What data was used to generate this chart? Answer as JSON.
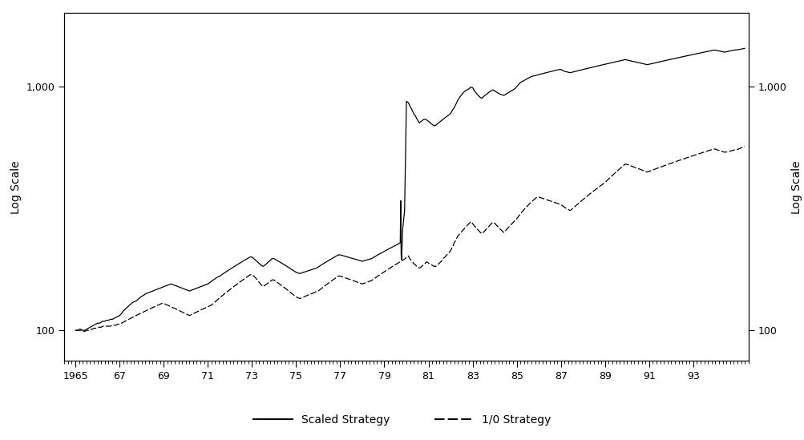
{
  "title": "",
  "xlabel": "",
  "ylabel_left": "Log Scale",
  "ylabel_right": "Log Scale",
  "xlim": [
    1964.5,
    1995.5
  ],
  "ylim": [
    75,
    2000
  ],
  "xtick_labels": [
    "1965",
    "67",
    "69",
    "71",
    "73",
    "75",
    "77",
    "79",
    "81",
    "83",
    "85",
    "87",
    "89",
    "91",
    "93"
  ],
  "xtick_positions": [
    1965,
    1967,
    1969,
    1971,
    1973,
    1975,
    1977,
    1979,
    1981,
    1983,
    1985,
    1987,
    1989,
    1991,
    1993
  ],
  "ytick_positions": [
    100,
    1000
  ],
  "ytick_labels": [
    "100",
    "1,000"
  ],
  "legend_entries": [
    "Scaled Strategy",
    "1/0 Strategy"
  ],
  "line_solid_color": "#000000",
  "line_dashed_color": "#000000",
  "background_color": "#ffffff",
  "scaled_years": [
    1965.0,
    1965.083,
    1965.167,
    1965.25,
    1965.333,
    1965.417,
    1965.5,
    1965.583,
    1965.667,
    1965.75,
    1965.833,
    1965.917,
    1966.0,
    1966.083,
    1966.167,
    1966.25,
    1966.333,
    1966.417,
    1966.5,
    1966.583,
    1966.667,
    1966.75,
    1966.833,
    1966.917,
    1967.0,
    1967.083,
    1967.167,
    1967.25,
    1967.333,
    1967.417,
    1967.5,
    1967.583,
    1967.667,
    1967.75,
    1967.833,
    1967.917,
    1968.0,
    1968.083,
    1968.167,
    1968.25,
    1968.333,
    1968.417,
    1968.5,
    1968.583,
    1968.667,
    1968.75,
    1968.833,
    1968.917,
    1969.0,
    1969.083,
    1969.167,
    1969.25,
    1969.333,
    1969.417,
    1969.5,
    1969.583,
    1969.667,
    1969.75,
    1969.833,
    1969.917,
    1970.0,
    1970.083,
    1970.167,
    1970.25,
    1970.333,
    1970.417,
    1970.5,
    1970.583,
    1970.667,
    1970.75,
    1970.833,
    1970.917,
    1971.0,
    1971.083,
    1971.167,
    1971.25,
    1971.333,
    1971.417,
    1971.5,
    1971.583,
    1971.667,
    1971.75,
    1971.833,
    1971.917,
    1972.0,
    1972.083,
    1972.167,
    1972.25,
    1972.333,
    1972.417,
    1972.5,
    1972.583,
    1972.667,
    1972.75,
    1972.833,
    1972.917,
    1973.0,
    1973.083,
    1973.167,
    1973.25,
    1973.333,
    1973.417,
    1973.5,
    1973.583,
    1973.667,
    1973.75,
    1973.833,
    1973.917,
    1974.0,
    1974.083,
    1974.167,
    1974.25,
    1974.333,
    1974.417,
    1974.5,
    1974.583,
    1974.667,
    1974.75,
    1974.833,
    1974.917,
    1975.0,
    1975.083,
    1975.167,
    1975.25,
    1975.333,
    1975.417,
    1975.5,
    1975.583,
    1975.667,
    1975.75,
    1975.833,
    1975.917,
    1976.0,
    1976.083,
    1976.167,
    1976.25,
    1976.333,
    1976.417,
    1976.5,
    1976.583,
    1976.667,
    1976.75,
    1976.833,
    1976.917,
    1977.0,
    1977.083,
    1977.167,
    1977.25,
    1977.333,
    1977.417,
    1977.5,
    1977.583,
    1977.667,
    1977.75,
    1977.833,
    1977.917,
    1978.0,
    1978.083,
    1978.167,
    1978.25,
    1978.333,
    1978.417,
    1978.5,
    1978.583,
    1978.667,
    1978.75,
    1978.833,
    1978.917,
    1979.0,
    1979.083,
    1979.167,
    1979.25,
    1979.333,
    1979.417,
    1979.5,
    1979.583,
    1979.667,
    1979.72,
    1979.74,
    1979.76,
    1979.78,
    1979.83,
    1979.917,
    1980.0,
    1980.083,
    1980.167,
    1980.25,
    1980.333,
    1980.417,
    1980.5,
    1980.583,
    1980.667,
    1980.75,
    1980.833,
    1980.917,
    1981.0,
    1981.083,
    1981.167,
    1981.25,
    1981.333,
    1981.417,
    1981.5,
    1981.583,
    1981.667,
    1981.75,
    1981.833,
    1981.917,
    1982.0,
    1982.083,
    1982.167,
    1982.25,
    1982.333,
    1982.417,
    1982.5,
    1982.583,
    1982.667,
    1982.75,
    1982.833,
    1982.917,
    1983.0,
    1983.083,
    1983.167,
    1983.25,
    1983.333,
    1983.417,
    1983.5,
    1983.583,
    1983.667,
    1983.75,
    1983.833,
    1983.917,
    1984.0,
    1984.083,
    1984.167,
    1984.25,
    1984.333,
    1984.417,
    1984.5,
    1984.583,
    1984.667,
    1984.75,
    1984.833,
    1984.917,
    1985.0,
    1985.083,
    1985.167,
    1985.25,
    1985.333,
    1985.417,
    1985.5,
    1985.583,
    1985.667,
    1985.75,
    1985.833,
    1985.917,
    1986.0,
    1986.083,
    1986.167,
    1986.25,
    1986.333,
    1986.417,
    1986.5,
    1986.583,
    1986.667,
    1986.75,
    1986.833,
    1986.917,
    1987.0,
    1987.083,
    1987.167,
    1987.25,
    1987.333,
    1987.417,
    1987.5,
    1987.583,
    1987.667,
    1987.75,
    1987.833,
    1987.917,
    1988.0,
    1988.083,
    1988.167,
    1988.25,
    1988.333,
    1988.417,
    1988.5,
    1988.583,
    1988.667,
    1988.75,
    1988.833,
    1988.917,
    1989.0,
    1989.083,
    1989.167,
    1989.25,
    1989.333,
    1989.417,
    1989.5,
    1989.583,
    1989.667,
    1989.75,
    1989.833,
    1989.917,
    1990.0,
    1990.083,
    1990.167,
    1990.25,
    1990.333,
    1990.417,
    1990.5,
    1990.583,
    1990.667,
    1990.75,
    1990.833,
    1990.917,
    1991.0,
    1991.083,
    1991.167,
    1991.25,
    1991.333,
    1991.417,
    1991.5,
    1991.583,
    1991.667,
    1991.75,
    1991.833,
    1991.917,
    1992.0,
    1992.083,
    1992.167,
    1992.25,
    1992.333,
    1992.417,
    1992.5,
    1992.583,
    1992.667,
    1992.75,
    1992.833,
    1992.917,
    1993.0,
    1993.083,
    1993.167,
    1993.25,
    1993.333,
    1993.417,
    1993.5,
    1993.583,
    1993.667,
    1993.75,
    1993.833,
    1993.917,
    1994.0,
    1994.083,
    1994.167,
    1994.25,
    1994.333,
    1994.417,
    1994.5,
    1994.583,
    1994.667,
    1994.75,
    1994.833,
    1994.917,
    1995.0,
    1995.083,
    1995.167,
    1995.25,
    1995.333
  ],
  "scaled_values": [
    100,
    100,
    101,
    101,
    100,
    100,
    101,
    102,
    103,
    104,
    105,
    106,
    107,
    107,
    108,
    109,
    109,
    110,
    110,
    111,
    111,
    112,
    113,
    114,
    115,
    117,
    120,
    122,
    124,
    126,
    128,
    130,
    131,
    132,
    134,
    136,
    138,
    139,
    141,
    142,
    143,
    144,
    145,
    146,
    147,
    148,
    149,
    150,
    151,
    152,
    153,
    154,
    155,
    154,
    153,
    152,
    151,
    150,
    149,
    148,
    147,
    146,
    145,
    146,
    147,
    148,
    149,
    150,
    151,
    152,
    153,
    154,
    155,
    157,
    159,
    161,
    163,
    165,
    166,
    168,
    170,
    172,
    174,
    176,
    178,
    180,
    182,
    184,
    186,
    188,
    190,
    192,
    194,
    196,
    198,
    200,
    200,
    197,
    194,
    191,
    188,
    185,
    183,
    185,
    188,
    191,
    194,
    197,
    197,
    195,
    193,
    191,
    189,
    187,
    185,
    183,
    181,
    179,
    177,
    175,
    173,
    172,
    171,
    172,
    173,
    174,
    175,
    176,
    177,
    178,
    179,
    180,
    182,
    184,
    186,
    188,
    190,
    192,
    194,
    196,
    198,
    200,
    202,
    204,
    204,
    203,
    202,
    201,
    200,
    199,
    198,
    197,
    196,
    195,
    194,
    193,
    192,
    193,
    194,
    195,
    196,
    197,
    199,
    201,
    203,
    205,
    207,
    209,
    211,
    213,
    215,
    217,
    219,
    221,
    223,
    225,
    227,
    229,
    340,
    205,
    195,
    260,
    310,
    870,
    860,
    830,
    800,
    775,
    755,
    730,
    710,
    720,
    730,
    735,
    730,
    720,
    710,
    700,
    690,
    695,
    705,
    715,
    725,
    735,
    745,
    755,
    765,
    775,
    800,
    820,
    850,
    880,
    905,
    925,
    945,
    960,
    970,
    980,
    995,
    990,
    960,
    940,
    920,
    905,
    895,
    910,
    925,
    935,
    950,
    960,
    970,
    960,
    950,
    940,
    930,
    925,
    920,
    930,
    940,
    950,
    960,
    970,
    980,
    1000,
    1020,
    1040,
    1050,
    1060,
    1070,
    1080,
    1090,
    1100,
    1105,
    1110,
    1115,
    1120,
    1125,
    1130,
    1135,
    1140,
    1145,
    1150,
    1155,
    1160,
    1165,
    1170,
    1175,
    1175,
    1165,
    1155,
    1150,
    1145,
    1140,
    1145,
    1150,
    1155,
    1160,
    1165,
    1170,
    1175,
    1180,
    1185,
    1190,
    1195,
    1200,
    1205,
    1210,
    1215,
    1220,
    1225,
    1230,
    1235,
    1240,
    1245,
    1250,
    1255,
    1260,
    1265,
    1270,
    1275,
    1280,
    1285,
    1290,
    1285,
    1280,
    1275,
    1270,
    1265,
    1260,
    1255,
    1250,
    1245,
    1240,
    1235,
    1230,
    1235,
    1240,
    1245,
    1250,
    1255,
    1260,
    1265,
    1270,
    1275,
    1280,
    1285,
    1290,
    1295,
    1300,
    1305,
    1310,
    1315,
    1320,
    1325,
    1330,
    1335,
    1340,
    1345,
    1350,
    1355,
    1360,
    1365,
    1370,
    1375,
    1380,
    1385,
    1390,
    1395,
    1400,
    1405,
    1410,
    1410,
    1405,
    1400,
    1395,
    1390,
    1385,
    1390,
    1395,
    1400,
    1405,
    1410,
    1415,
    1415,
    1420,
    1425,
    1430,
    1435
  ],
  "strat10_years": [
    1965.0,
    1965.083,
    1965.167,
    1965.25,
    1965.333,
    1965.417,
    1965.5,
    1965.583,
    1965.667,
    1965.75,
    1965.833,
    1965.917,
    1966.0,
    1966.083,
    1966.167,
    1966.25,
    1966.333,
    1966.417,
    1966.5,
    1966.583,
    1966.667,
    1966.75,
    1966.833,
    1966.917,
    1967.0,
    1967.083,
    1967.167,
    1967.25,
    1967.333,
    1967.417,
    1967.5,
    1967.583,
    1967.667,
    1967.75,
    1967.833,
    1967.917,
    1968.0,
    1968.083,
    1968.167,
    1968.25,
    1968.333,
    1968.417,
    1968.5,
    1968.583,
    1968.667,
    1968.75,
    1968.833,
    1968.917,
    1969.0,
    1969.083,
    1969.167,
    1969.25,
    1969.333,
    1969.417,
    1969.5,
    1969.583,
    1969.667,
    1969.75,
    1969.833,
    1969.917,
    1970.0,
    1970.083,
    1970.167,
    1970.25,
    1970.333,
    1970.417,
    1970.5,
    1970.583,
    1970.667,
    1970.75,
    1970.833,
    1970.917,
    1971.0,
    1971.083,
    1971.167,
    1971.25,
    1971.333,
    1971.417,
    1971.5,
    1971.583,
    1971.667,
    1971.75,
    1971.833,
    1971.917,
    1972.0,
    1972.083,
    1972.167,
    1972.25,
    1972.333,
    1972.417,
    1972.5,
    1972.583,
    1972.667,
    1972.75,
    1972.833,
    1972.917,
    1973.0,
    1973.083,
    1973.167,
    1973.25,
    1973.333,
    1973.417,
    1973.5,
    1973.583,
    1973.667,
    1973.75,
    1973.833,
    1973.917,
    1974.0,
    1974.083,
    1974.167,
    1974.25,
    1974.333,
    1974.417,
    1974.5,
    1974.583,
    1974.667,
    1974.75,
    1974.833,
    1974.917,
    1975.0,
    1975.083,
    1975.167,
    1975.25,
    1975.333,
    1975.417,
    1975.5,
    1975.583,
    1975.667,
    1975.75,
    1975.833,
    1975.917,
    1976.0,
    1976.083,
    1976.167,
    1976.25,
    1976.333,
    1976.417,
    1976.5,
    1976.583,
    1976.667,
    1976.75,
    1976.833,
    1976.917,
    1977.0,
    1977.083,
    1977.167,
    1977.25,
    1977.333,
    1977.417,
    1977.5,
    1977.583,
    1977.667,
    1977.75,
    1977.833,
    1977.917,
    1978.0,
    1978.083,
    1978.167,
    1978.25,
    1978.333,
    1978.417,
    1978.5,
    1978.583,
    1978.667,
    1978.75,
    1978.833,
    1978.917,
    1979.0,
    1979.083,
    1979.167,
    1979.25,
    1979.333,
    1979.417,
    1979.5,
    1979.583,
    1979.667,
    1979.75,
    1979.833,
    1979.917,
    1980.0,
    1980.083,
    1980.167,
    1980.25,
    1980.333,
    1980.417,
    1980.5,
    1980.583,
    1980.667,
    1980.75,
    1980.833,
    1980.917,
    1981.0,
    1981.083,
    1981.167,
    1981.25,
    1981.333,
    1981.417,
    1981.5,
    1981.583,
    1981.667,
    1981.75,
    1981.833,
    1981.917,
    1982.0,
    1982.083,
    1982.167,
    1982.25,
    1982.333,
    1982.417,
    1982.5,
    1982.583,
    1982.667,
    1982.75,
    1982.833,
    1982.917,
    1983.0,
    1983.083,
    1983.167,
    1983.25,
    1983.333,
    1983.417,
    1983.5,
    1983.583,
    1983.667,
    1983.75,
    1983.833,
    1983.917,
    1984.0,
    1984.083,
    1984.167,
    1984.25,
    1984.333,
    1984.417,
    1984.5,
    1984.583,
    1984.667,
    1984.75,
    1984.833,
    1984.917,
    1985.0,
    1985.083,
    1985.167,
    1985.25,
    1985.333,
    1985.417,
    1985.5,
    1985.583,
    1985.667,
    1985.75,
    1985.833,
    1985.917,
    1986.0,
    1986.083,
    1986.167,
    1986.25,
    1986.333,
    1986.417,
    1986.5,
    1986.583,
    1986.667,
    1986.75,
    1986.833,
    1986.917,
    1987.0,
    1987.083,
    1987.167,
    1987.25,
    1987.333,
    1987.417,
    1987.5,
    1987.583,
    1987.667,
    1987.75,
    1987.833,
    1987.917,
    1988.0,
    1988.083,
    1988.167,
    1988.25,
    1988.333,
    1988.417,
    1988.5,
    1988.583,
    1988.667,
    1988.75,
    1988.833,
    1988.917,
    1989.0,
    1989.083,
    1989.167,
    1989.25,
    1989.333,
    1989.417,
    1989.5,
    1989.583,
    1989.667,
    1989.75,
    1989.833,
    1989.917,
    1990.0,
    1990.083,
    1990.167,
    1990.25,
    1990.333,
    1990.417,
    1990.5,
    1990.583,
    1990.667,
    1990.75,
    1990.833,
    1990.917,
    1991.0,
    1991.083,
    1991.167,
    1991.25,
    1991.333,
    1991.417,
    1991.5,
    1991.583,
    1991.667,
    1991.75,
    1991.833,
    1991.917,
    1992.0,
    1992.083,
    1992.167,
    1992.25,
    1992.333,
    1992.417,
    1992.5,
    1992.583,
    1992.667,
    1992.75,
    1992.833,
    1992.917,
    1993.0,
    1993.083,
    1993.167,
    1993.25,
    1993.333,
    1993.417,
    1993.5,
    1993.583,
    1993.667,
    1993.75,
    1993.833,
    1993.917,
    1994.0,
    1994.083,
    1994.167,
    1994.25,
    1994.333,
    1994.417,
    1994.5,
    1994.583,
    1994.667,
    1994.75,
    1994.833,
    1994.917,
    1995.0,
    1995.083,
    1995.167,
    1995.25,
    1995.333
  ],
  "strat10_values": [
    100,
    100,
    100,
    100,
    99,
    99,
    100,
    100,
    101,
    101,
    102,
    102,
    103,
    103,
    103,
    104,
    104,
    104,
    104,
    104,
    105,
    105,
    105,
    106,
    106,
    107,
    108,
    109,
    110,
    111,
    112,
    113,
    114,
    115,
    116,
    117,
    118,
    119,
    120,
    121,
    122,
    123,
    124,
    125,
    126,
    127,
    128,
    129,
    129,
    128,
    127,
    126,
    125,
    124,
    123,
    122,
    121,
    120,
    119,
    118,
    117,
    116,
    115,
    116,
    117,
    118,
    119,
    120,
    121,
    122,
    123,
    124,
    125,
    126,
    127,
    129,
    131,
    133,
    135,
    137,
    139,
    141,
    143,
    145,
    147,
    149,
    151,
    153,
    155,
    157,
    159,
    161,
    163,
    165,
    167,
    169,
    169,
    167,
    164,
    161,
    157,
    154,
    151,
    153,
    155,
    157,
    159,
    161,
    161,
    159,
    157,
    155,
    153,
    151,
    149,
    147,
    145,
    143,
    141,
    139,
    137,
    136,
    135,
    136,
    137,
    138,
    139,
    140,
    141,
    142,
    143,
    144,
    145,
    147,
    149,
    151,
    153,
    155,
    157,
    159,
    161,
    163,
    165,
    167,
    167,
    166,
    165,
    164,
    163,
    162,
    161,
    160,
    159,
    158,
    157,
    156,
    155,
    156,
    157,
    158,
    159,
    160,
    162,
    164,
    166,
    168,
    170,
    172,
    174,
    176,
    178,
    180,
    182,
    184,
    186,
    188,
    190,
    192,
    194,
    196,
    200,
    202,
    196,
    192,
    188,
    185,
    182,
    180,
    182,
    185,
    188,
    191,
    189,
    187,
    185,
    183,
    183,
    186,
    189,
    192,
    197,
    200,
    204,
    208,
    212,
    220,
    228,
    236,
    244,
    249,
    254,
    259,
    264,
    269,
    274,
    279,
    274,
    268,
    263,
    258,
    253,
    249,
    253,
    258,
    263,
    268,
    273,
    278,
    275,
    270,
    265,
    260,
    256,
    252,
    257,
    262,
    267,
    272,
    277,
    282,
    287,
    294,
    301,
    307,
    313,
    319,
    325,
    331,
    337,
    342,
    347,
    352,
    352,
    350,
    348,
    346,
    344,
    342,
    340,
    338,
    336,
    334,
    332,
    330,
    328,
    324,
    320,
    316,
    313,
    310,
    314,
    319,
    324,
    329,
    334,
    339,
    344,
    349,
    354,
    359,
    364,
    369,
    374,
    379,
    384,
    389,
    394,
    399,
    404,
    411,
    418,
    425,
    432,
    439,
    446,
    453,
    460,
    467,
    474,
    481,
    479,
    476,
    473,
    470,
    467,
    464,
    461,
    458,
    455,
    452,
    449,
    446,
    449,
    452,
    455,
    458,
    461,
    464,
    467,
    470,
    473,
    476,
    479,
    482,
    485,
    488,
    491,
    494,
    497,
    500,
    503,
    506,
    509,
    512,
    515,
    518,
    521,
    524,
    527,
    530,
    533,
    536,
    539,
    542,
    545,
    548,
    551,
    554,
    554,
    550,
    547,
    544,
    541,
    538,
    539,
    541,
    543,
    546,
    549,
    552,
    552,
    556,
    560,
    564,
    568
  ]
}
